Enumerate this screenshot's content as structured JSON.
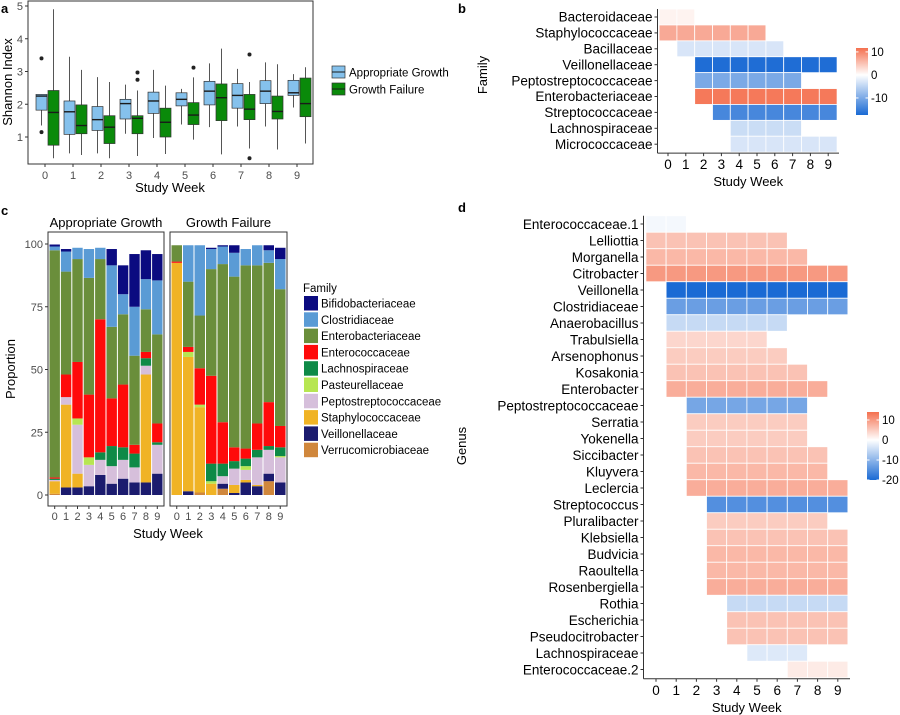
{
  "panel_labels": [
    "a",
    "b",
    "c",
    "d"
  ],
  "chart_data": [
    {
      "type": "box",
      "panel": "a",
      "xlabel": "Study Week",
      "ylabel": "Shannon Index",
      "ylim": [
        0.3,
        5.05
      ],
      "yticks": [
        "1",
        "2",
        "3",
        "4",
        "5"
      ],
      "categories": [
        "0",
        "1",
        "2",
        "3",
        "4",
        "5",
        "6",
        "7",
        "8",
        "9"
      ],
      "legend": [
        {
          "name": "Appropriate Growth",
          "color": "#85C1EC"
        },
        {
          "name": "Growth Failure",
          "color": "#0A8A0A"
        }
      ],
      "series": [
        {
          "name": "Appropriate Growth",
          "boxes": [
            {
              "min": 1.35,
              "q1": 1.82,
              "median": 2.25,
              "q3": 2.3,
              "max": 2.3,
              "outliers": [
                3.4,
                1.15
              ]
            },
            {
              "min": 0.5,
              "q1": 1.08,
              "median": 1.77,
              "q3": 2.1,
              "max": 3.45,
              "outliers": []
            },
            {
              "min": 0.5,
              "q1": 1.2,
              "median": 1.53,
              "q3": 1.93,
              "max": 2.83,
              "outliers": []
            },
            {
              "min": 1.1,
              "q1": 1.55,
              "median": 2.02,
              "q3": 2.15,
              "max": 2.6,
              "outliers": []
            },
            {
              "min": 0.97,
              "q1": 1.72,
              "median": 2.1,
              "q3": 2.37,
              "max": 3.05,
              "outliers": []
            },
            {
              "min": 1.38,
              "q1": 1.95,
              "median": 2.15,
              "q3": 2.35,
              "max": 2.47,
              "outliers": []
            },
            {
              "min": 1.3,
              "q1": 1.98,
              "median": 2.4,
              "q3": 2.7,
              "max": 3.25,
              "outliers": []
            },
            {
              "min": 1.32,
              "q1": 1.88,
              "median": 2.27,
              "q3": 2.63,
              "max": 3.08,
              "outliers": []
            },
            {
              "min": 1.32,
              "q1": 2.02,
              "median": 2.4,
              "q3": 2.72,
              "max": 3.28,
              "outliers": []
            },
            {
              "min": 1.9,
              "q1": 2.27,
              "median": 2.35,
              "q3": 2.73,
              "max": 2.92,
              "outliers": []
            }
          ]
        },
        {
          "name": "Growth Failure",
          "boxes": [
            {
              "min": 0.35,
              "q1": 0.75,
              "median": 1.75,
              "q3": 2.42,
              "max": 4.9,
              "outliers": []
            },
            {
              "min": 0.45,
              "q1": 1.1,
              "median": 1.35,
              "q3": 1.98,
              "max": 3.05,
              "outliers": []
            },
            {
              "min": 0.35,
              "q1": 0.8,
              "median": 1.3,
              "q3": 1.65,
              "max": 2.68,
              "outliers": []
            },
            {
              "min": 0.42,
              "q1": 1.1,
              "median": 1.57,
              "q3": 1.65,
              "max": 2.42,
              "outliers": [
                2.97,
                2.75
              ]
            },
            {
              "min": 0.48,
              "q1": 1.0,
              "median": 1.45,
              "q3": 1.88,
              "max": 2.57,
              "outliers": []
            },
            {
              "min": 0.92,
              "q1": 1.38,
              "median": 1.67,
              "q3": 2.05,
              "max": 2.82,
              "outliers": [
                3.12
              ]
            },
            {
              "min": 0.47,
              "q1": 1.5,
              "median": 2.2,
              "q3": 2.62,
              "max": 3.7,
              "outliers": []
            },
            {
              "min": 0.65,
              "q1": 1.53,
              "median": 1.85,
              "q3": 2.3,
              "max": 2.68,
              "outliers": [
                3.52,
                0.35
              ]
            },
            {
              "min": 0.62,
              "q1": 1.55,
              "median": 1.78,
              "q3": 2.25,
              "max": 3.22,
              "outliers": []
            },
            {
              "min": 0.8,
              "q1": 1.62,
              "median": 2.02,
              "q3": 2.8,
              "max": 3.13,
              "outliers": []
            }
          ]
        }
      ]
    },
    {
      "type": "heatmap",
      "panel": "b",
      "xlabel": "Study Week",
      "ylabel": "Family",
      "categories": [
        "0",
        "1",
        "2",
        "3",
        "4",
        "5",
        "6",
        "7",
        "8",
        "9"
      ],
      "limits": [
        -17.4,
        11.7
      ],
      "legend_ticks": [
        {
          "value": 10,
          "label": "10"
        },
        {
          "value": 0,
          "label": "0"
        },
        {
          "value": -10,
          "label": "-10"
        }
      ],
      "colors": {
        "low": "#1A6AD4",
        "mid": "#FFFFFF",
        "high": "#F4704F"
      },
      "rows": [
        {
          "name": "Bacteroidaceae",
          "from": 0,
          "to": 1,
          "value": 1
        },
        {
          "name": "Staphylococcaceae",
          "from": 0,
          "to": 5,
          "value": 7
        },
        {
          "name": "Bacillaceae",
          "from": 1,
          "to": 6,
          "value": -3
        },
        {
          "name": "Veillonellaceae",
          "from": 2,
          "to": 9,
          "value": -17
        },
        {
          "name": "Peptostreptococcaceae",
          "from": 2,
          "to": 7,
          "value": -10
        },
        {
          "name": "Enterobacteriaceae",
          "from": 2,
          "to": 9,
          "value": 11
        },
        {
          "name": "Streptococcaceae",
          "from": 3,
          "to": 9,
          "value": -14
        },
        {
          "name": "Lachnospiraceae",
          "from": 4,
          "to": 7,
          "value": -4
        },
        {
          "name": "Micrococcaceae",
          "from": 4,
          "to": 9,
          "value": -3
        }
      ]
    },
    {
      "type": "bar",
      "stacked": true,
      "panel": "c",
      "xlabel": "Study Week",
      "ylabel": "Proportion",
      "ylim": [
        0,
        100
      ],
      "yticks": [
        "0",
        "25",
        "50",
        "75",
        "100"
      ],
      "categories": [
        "0",
        "1",
        "2",
        "3",
        "4",
        "5",
        "6",
        "7",
        "8",
        "9"
      ],
      "legend_title": "Family",
      "families": [
        {
          "name": "Bifidobacteriaceae",
          "color": "#0B0B80"
        },
        {
          "name": "Clostridiaceae",
          "color": "#5A9BD5"
        },
        {
          "name": "Enterobacteriaceae",
          "color": "#6A8E3B"
        },
        {
          "name": "Enterococcaceae",
          "color": "#FF0A0A"
        },
        {
          "name": "Lachnospiraceae",
          "color": "#0E8A47"
        },
        {
          "name": "Pasteurellaceae",
          "color": "#B7E652"
        },
        {
          "name": "Peptostreptococcaceae",
          "color": "#D6BFDB"
        },
        {
          "name": "Staphylococcaceae",
          "color": "#F0B325"
        },
        {
          "name": "Veillonellaceae",
          "color": "#1B1B6E"
        },
        {
          "name": "Verrucomicrobiaceae",
          "color": "#D0873C"
        }
      ],
      "facets": [
        {
          "title": "Appropriate Growth",
          "bars": [
            [
              0.8,
              1.5,
              90.5,
              0.5,
              0.5,
              0,
              0.5,
              5,
              0,
              0.5
            ],
            [
              1,
              8,
              41,
              9,
              0,
              0,
              3,
              33,
              3,
              0
            ],
            [
              0,
              4.5,
              41,
              22.5,
              0,
              2.5,
              19.5,
              5.5,
              3,
              0
            ],
            [
              0,
              11.5,
              46.5,
              25,
              0,
              3,
              8.5,
              0,
              3.5,
              0
            ],
            [
              0,
              4.5,
              24,
              53,
              3,
              0,
              6,
              0,
              8,
              0
            ],
            [
              6.5,
              24.5,
              28.5,
              19,
              8,
              0,
              7,
              0,
              4.5,
              0
            ],
            [
              11.5,
              8,
              28,
              25,
              5,
              0,
              7.5,
              0,
              6.5,
              0
            ],
            [
              21,
              19.5,
              35.5,
              3.5,
              5.5,
              0,
              6,
              0,
              5,
              0
            ],
            [
              11.5,
              12,
              17,
              2.5,
              3,
              0,
              3.5,
              43,
              5,
              0
            ],
            [
              10.5,
              21.5,
              35.5,
              7.5,
              1,
              0,
              11.5,
              0,
              8.5,
              0
            ]
          ]
        },
        {
          "title": "Growth Failure",
          "bars": [
            [
              0,
              0,
              6.5,
              0.5,
              0,
              0,
              0,
              92.5,
              0,
              0
            ],
            [
              0,
              14.5,
              26,
              2,
              0,
              2,
              0,
              53.5,
              1.5,
              0
            ],
            [
              0,
              28,
              21,
              14.5,
              0,
              1,
              0,
              34,
              0,
              1
            ],
            [
              0.5,
              8,
              42.5,
              35,
              7,
              1,
              0,
              4.5,
              0,
              0
            ],
            [
              0.5,
              7,
              63,
              16.5,
              5,
              0,
              3,
              0,
              2,
              2.5
            ],
            [
              3,
              9.5,
              68,
              5.5,
              3,
              0,
              6.5,
              3.2,
              0.8,
              0
            ],
            [
              0,
              6.5,
              73,
              4,
              3,
              1.5,
              4,
              1,
              5,
              0
            ],
            [
              0,
              8,
              63,
              10.5,
              3,
              0,
              11,
              0.5,
              3.5,
              0
            ],
            [
              2,
              5,
              55.5,
              17.5,
              1.5,
              0,
              9.5,
              0,
              3,
              5.5
            ],
            [
              4.5,
              12,
              54.5,
              8.5,
              3.5,
              0.5,
              10,
              0,
              5,
              0
            ]
          ]
        }
      ]
    },
    {
      "type": "heatmap",
      "panel": "d",
      "xlabel": "Study Week",
      "ylabel": "Genus",
      "categories": [
        "0",
        "1",
        "2",
        "3",
        "4",
        "5",
        "6",
        "7",
        "8",
        "9"
      ],
      "limits": [
        -20,
        14
      ],
      "legend_ticks": [
        {
          "value": 10,
          "label": "10"
        },
        {
          "value": 0,
          "label": "0"
        },
        {
          "value": -10,
          "label": "-10"
        },
        {
          "value": -20,
          "label": "-20"
        }
      ],
      "colors": {
        "low": "#1A6AD4",
        "mid": "#FFFFFF",
        "high": "#F4704F"
      },
      "rows": [
        {
          "name": "Enterococcaceae.1",
          "from": 0,
          "to": 1,
          "value": -1
        },
        {
          "name": "Lelliottia",
          "from": 0,
          "to": 6,
          "value": 6
        },
        {
          "name": "Morganella",
          "from": 0,
          "to": 7,
          "value": 7
        },
        {
          "name": "Citrobacter",
          "from": 0,
          "to": 9,
          "value": 10
        },
        {
          "name": "Veillonella",
          "from": 1,
          "to": 9,
          "value": -20
        },
        {
          "name": "Clostridiaceae",
          "from": 1,
          "to": 9,
          "value": -13
        },
        {
          "name": "Anaerobacillus",
          "from": 1,
          "to": 6,
          "value": -5
        },
        {
          "name": "Trabulsiella",
          "from": 1,
          "to": 5,
          "value": 4
        },
        {
          "name": "Arsenophonus",
          "from": 1,
          "to": 6,
          "value": 5
        },
        {
          "name": "Kosakonia",
          "from": 1,
          "to": 7,
          "value": 6
        },
        {
          "name": "Enterobacter",
          "from": 1,
          "to": 8,
          "value": 8
        },
        {
          "name": "Peptostreptococcaceae",
          "from": 2,
          "to": 7,
          "value": -12
        },
        {
          "name": "Serratia",
          "from": 2,
          "to": 7,
          "value": 5
        },
        {
          "name": "Yokenella",
          "from": 2,
          "to": 7,
          "value": 5
        },
        {
          "name": "Siccibacter",
          "from": 2,
          "to": 8,
          "value": 6
        },
        {
          "name": "Kluyvera",
          "from": 2,
          "to": 8,
          "value": 7
        },
        {
          "name": "Leclercia",
          "from": 2,
          "to": 9,
          "value": 8
        },
        {
          "name": "Streptococcus",
          "from": 3,
          "to": 9,
          "value": -15
        },
        {
          "name": "Pluralibacter",
          "from": 3,
          "to": 8,
          "value": 5
        },
        {
          "name": "Klebsiella",
          "from": 3,
          "to": 9,
          "value": 6
        },
        {
          "name": "Budvicia",
          "from": 3,
          "to": 9,
          "value": 7
        },
        {
          "name": "Raoultella",
          "from": 3,
          "to": 9,
          "value": 7
        },
        {
          "name": "Rosenbergiella",
          "from": 3,
          "to": 9,
          "value": 8
        },
        {
          "name": "Rothia",
          "from": 4,
          "to": 9,
          "value": -5
        },
        {
          "name": "Escherichia",
          "from": 4,
          "to": 9,
          "value": 6
        },
        {
          "name": "Pseudocitrobacter",
          "from": 4,
          "to": 9,
          "value": 6
        },
        {
          "name": "Lachnospiraceae",
          "from": 5,
          "to": 7,
          "value": -3
        },
        {
          "name": "Enterococcaceae.2",
          "from": 7,
          "to": 9,
          "value": 2
        }
      ]
    }
  ]
}
